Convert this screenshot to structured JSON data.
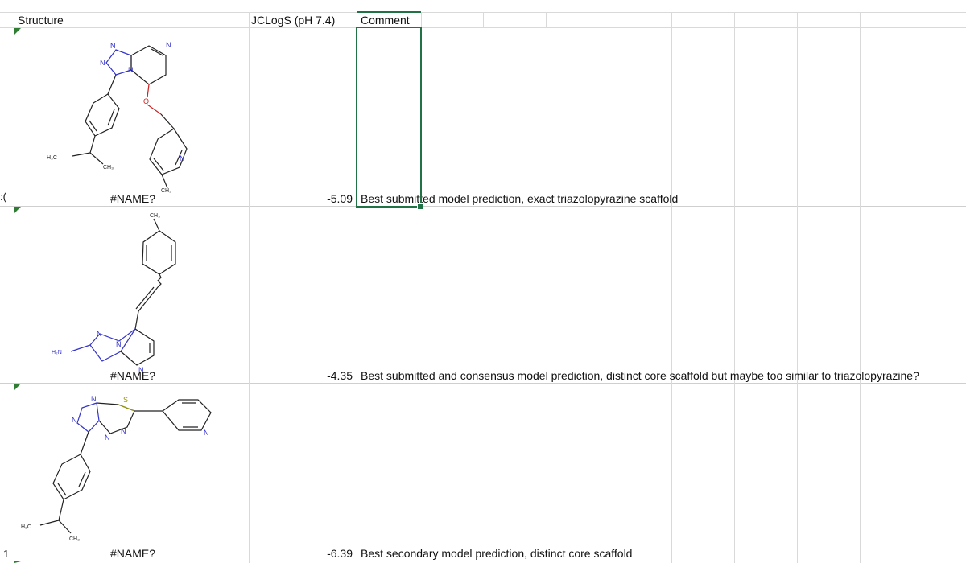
{
  "header": {
    "structure": "Structure",
    "jclogs": "JCLogS (pH 7.4)",
    "comment": "Comment"
  },
  "rows": [
    {
      "name_cell": "#NAME?",
      "value": "-5.09",
      "comment": "Best submitted model prediction, exact triazolopyrazine scaffold",
      "row_fragment": ":("
    },
    {
      "name_cell": "#NAME?",
      "value": "-4.35",
      "comment": "Best submitted and consensus model prediction, distinct core scaffold but maybe too similar to triazolopyrazine?"
    },
    {
      "name_cell": "#NAME?",
      "value": "-6.39",
      "comment": "Best secondary model prediction, distinct core scaffold",
      "row_fragment": "1"
    }
  ],
  "atoms": {
    "N": "N",
    "O": "O",
    "S": "S",
    "ch3": "CH₃",
    "h3c": "H₃C",
    "h2n": "H₂N"
  },
  "colors": {
    "selection": "#217346",
    "nitrogen": "#3333cc",
    "oxygen": "#cc2222",
    "sulfur": "#999900",
    "gridline": "#d9d9d9"
  }
}
